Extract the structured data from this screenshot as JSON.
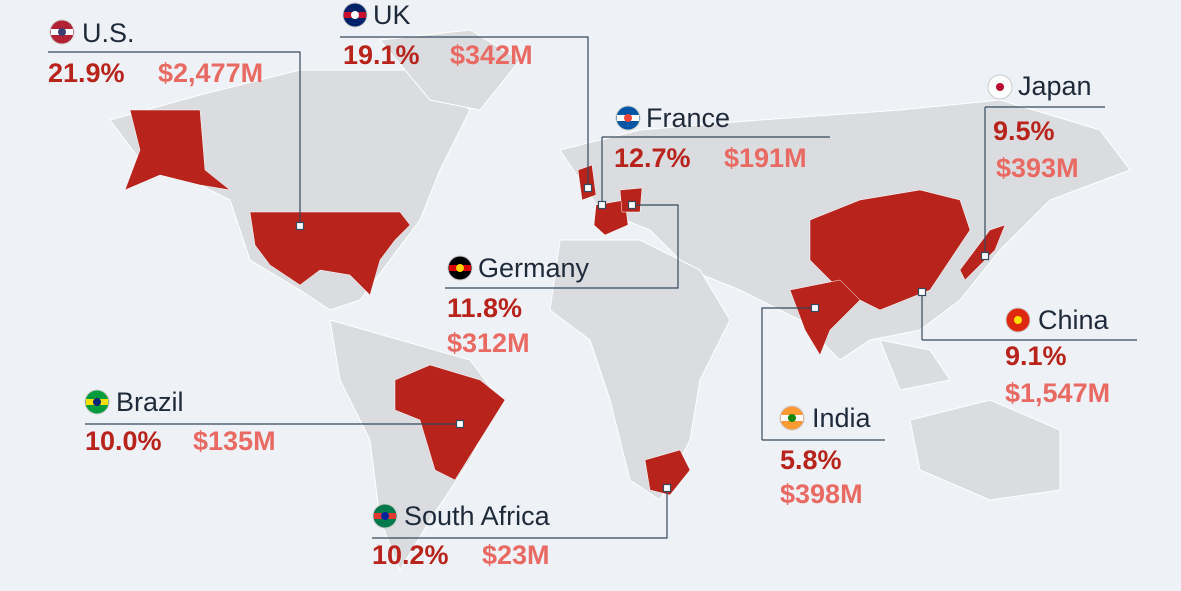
{
  "countries": [
    {
      "name": "U.S.",
      "share": "21.9%",
      "revenue": "$2,477M"
    },
    {
      "name": "UK",
      "share": "19.1%",
      "revenue": "$342M"
    },
    {
      "name": "France",
      "share": "12.7%",
      "revenue": "$191M"
    },
    {
      "name": "Japan",
      "share": "9.5%",
      "revenue": "$393M"
    },
    {
      "name": "Germany",
      "share": "11.8%",
      "revenue": "$312M"
    },
    {
      "name": "China",
      "share": "9.1%",
      "revenue": "$1,547M"
    },
    {
      "name": "Brazil",
      "share": "10.0%",
      "revenue": "$135M"
    },
    {
      "name": "India",
      "share": "5.8%",
      "revenue": "$398M"
    },
    {
      "name": "South Africa",
      "share": "10.2%",
      "revenue": "$23M"
    }
  ]
}
